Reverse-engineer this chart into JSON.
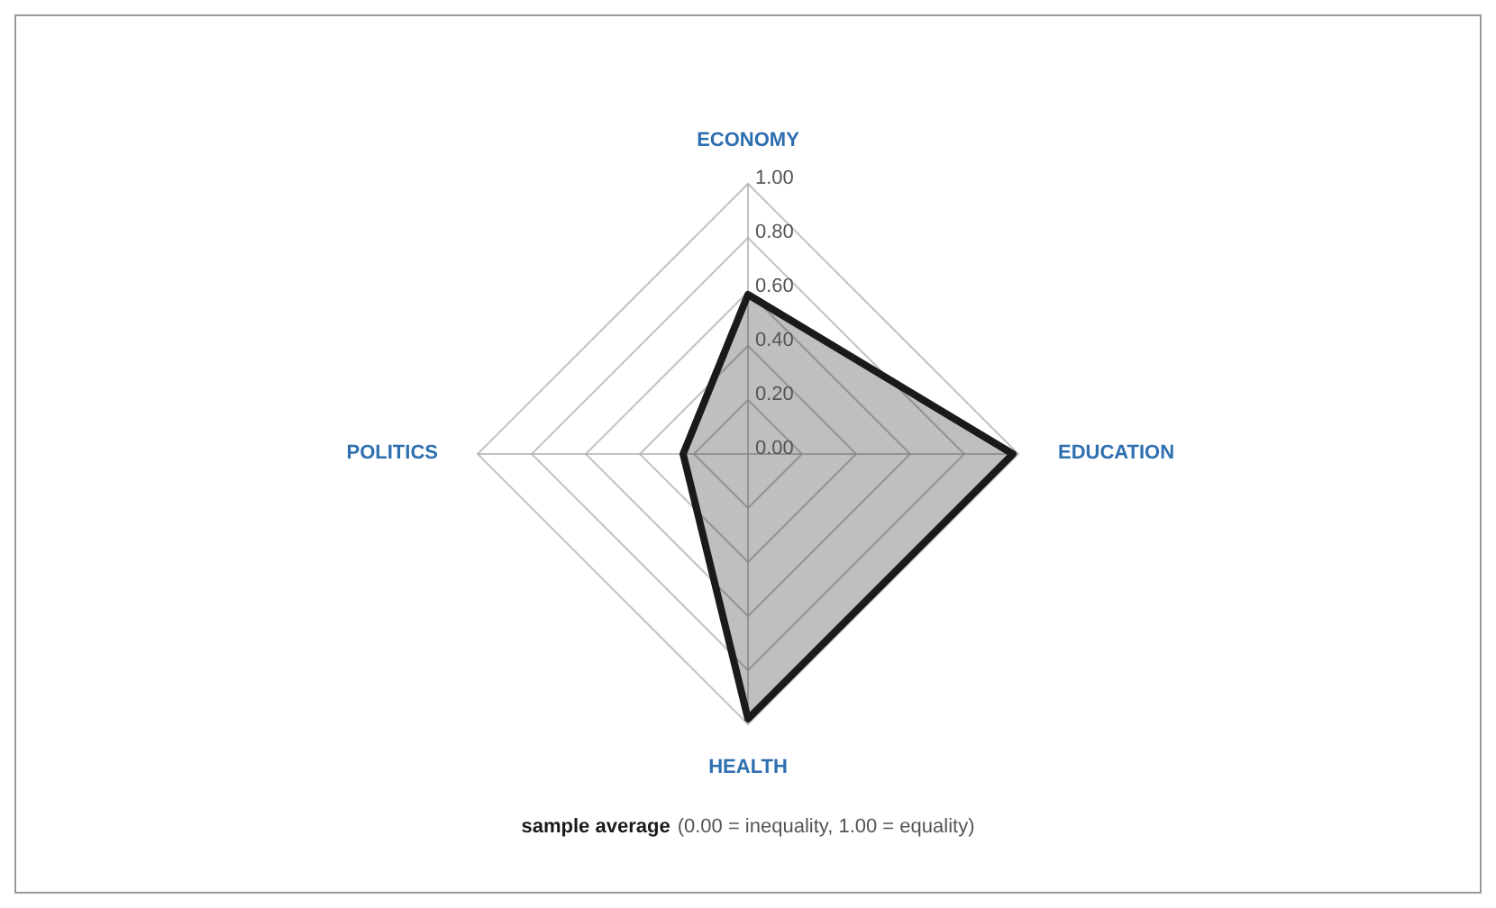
{
  "chart_data": {
    "type": "radar",
    "categories": [
      "ECONOMY",
      "EDUCATION",
      "HEALTH",
      "POLITICS"
    ],
    "series": [
      {
        "name": "sample average",
        "color": "#1a1a1a",
        "values": [
          0.59,
          0.98,
          0.98,
          0.24
        ]
      }
    ],
    "ylim": [
      0,
      1
    ],
    "yticks": [
      {
        "value": 0,
        "label": "0.00"
      },
      {
        "value": 0.2,
        "label": "0.20"
      },
      {
        "value": 0.4,
        "label": "0.40"
      },
      {
        "value": 0.6,
        "label": "0.60"
      },
      {
        "value": 0.8,
        "label": "0.80"
      },
      {
        "value": 1,
        "label": "1.00"
      }
    ],
    "grid": true,
    "legend": "bottom",
    "annotations": [
      "(0.00 = inequality, 1.00 = equality)"
    ]
  }
}
